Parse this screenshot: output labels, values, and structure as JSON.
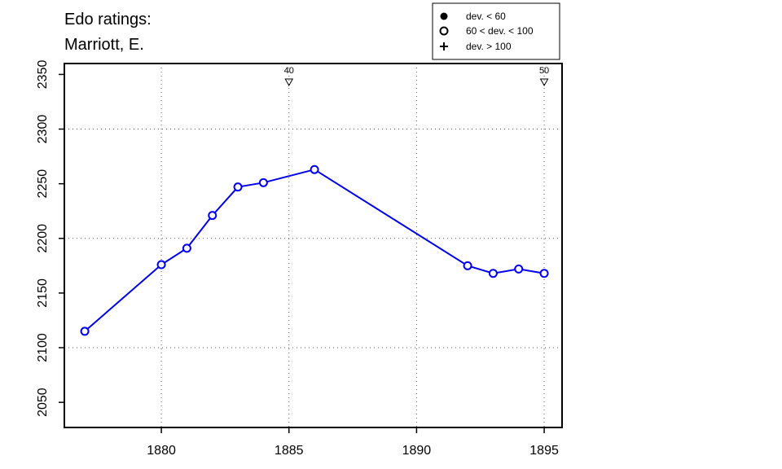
{
  "chart_data": {
    "type": "line",
    "title_lines": [
      "Edo ratings:",
      "Marriott, E."
    ],
    "xlim": [
      1876.2,
      1895.7
    ],
    "ylim": [
      2027,
      2360
    ],
    "x_ticks": [
      1880,
      1885,
      1890,
      1895
    ],
    "y_ticks": [
      2050,
      2100,
      2150,
      2200,
      2250,
      2300,
      2350
    ],
    "x_grid": [
      1880,
      1885,
      1890,
      1895
    ],
    "y_grid": [
      2100,
      2200,
      2300
    ],
    "grid": true,
    "legend": {
      "position": "top-right",
      "entries": [
        {
          "symbol": "filled-circle",
          "label": "dev. < 60"
        },
        {
          "symbol": "open-circle",
          "label": "60 < dev. < 100"
        },
        {
          "symbol": "plus",
          "label": "dev. > 100"
        }
      ]
    },
    "markers": [
      {
        "x": 1885,
        "label": "40"
      },
      {
        "x": 1895,
        "label": "50"
      }
    ],
    "series": [
      {
        "color": "#0000ee",
        "marker": "open-circle",
        "x": [
          1877,
          1880,
          1881,
          1882,
          1883,
          1884,
          1886,
          1892,
          1893,
          1894,
          1895
        ],
        "y": [
          2115,
          2176,
          2191,
          2221,
          2247,
          2251,
          2263,
          2175,
          2168,
          2172,
          2168
        ]
      }
    ]
  }
}
